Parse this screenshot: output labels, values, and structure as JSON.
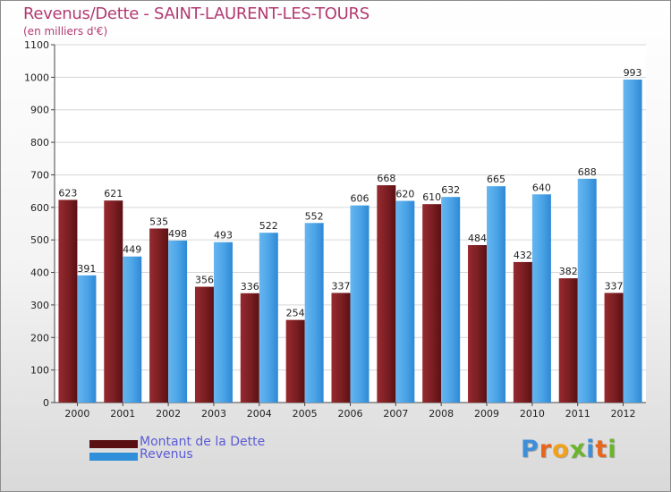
{
  "title": "Revenus/Dette - SAINT-LAURENT-LES-TOURS",
  "subtitle": "(en milliers d'€)",
  "logo": {
    "text": "Proxiti",
    "letters": [
      {
        "ch": "P",
        "color": "#3f8fd8"
      },
      {
        "ch": "r",
        "color": "#e8661c"
      },
      {
        "ch": "o",
        "color": "#f2a21a"
      },
      {
        "ch": "x",
        "color": "#6bb52c"
      },
      {
        "ch": "i",
        "color": "#3f8fd8"
      },
      {
        "ch": "t",
        "color": "#e8661c"
      },
      {
        "ch": "i",
        "color": "#6bb52c"
      }
    ]
  },
  "colors": {
    "dette": "#7a1e22",
    "revenus": "#4aa3e6",
    "title": "#b23a72",
    "legend_text": "#5b5bd6"
  },
  "chart_data": {
    "type": "bar",
    "title": "Revenus/Dette - SAINT-LAURENT-LES-TOURS",
    "ylabel": "(en milliers d'€)",
    "xlabel": "",
    "categories": [
      "2000",
      "2001",
      "2002",
      "2003",
      "2004",
      "2005",
      "2006",
      "2007",
      "2008",
      "2009",
      "2010",
      "2011",
      "2012"
    ],
    "series": [
      {
        "name": "Montant de la Dette",
        "values": [
          623,
          621,
          535,
          356,
          336,
          254,
          337,
          668,
          610,
          484,
          432,
          382,
          337
        ]
      },
      {
        "name": "Revenus",
        "values": [
          391,
          449,
          498,
          493,
          522,
          552,
          606,
          620,
          632,
          665,
          640,
          688,
          993
        ]
      }
    ],
    "ylim": [
      0,
      1100
    ],
    "yticks": [
      0,
      100,
      200,
      300,
      400,
      500,
      600,
      700,
      800,
      900,
      1000,
      1100
    ],
    "grid": true,
    "legend": "bottom-left"
  }
}
